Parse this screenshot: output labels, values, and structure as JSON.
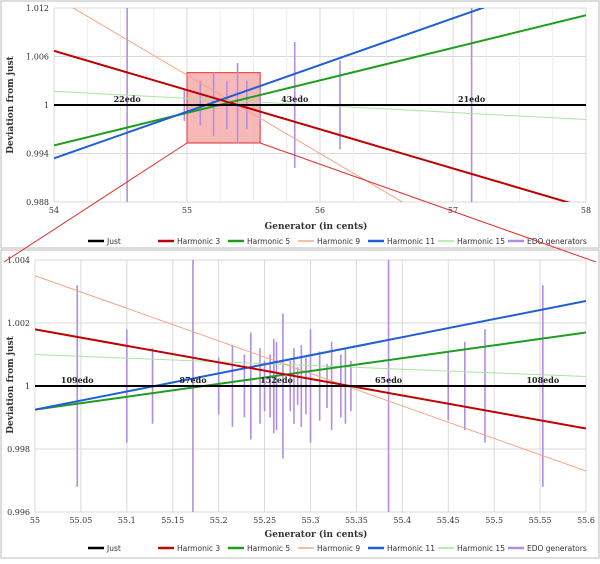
{
  "colors": {
    "just": "#000000",
    "harmonic3": "#c00000",
    "harmonic5": "#1e9e1e",
    "harmonic9": "#f4a582",
    "harmonic11": "#1f5fd6",
    "harmonic15": "#a8e6a0",
    "edo": "#b18ee0",
    "zoom_fill": "#f4a0a0",
    "zoom_stroke": "#e03030",
    "grid": "#d9d9d9",
    "border": "#bbbbbb"
  },
  "legend": {
    "items": [
      {
        "label": "Just",
        "key": "just"
      },
      {
        "label": "Harmonic 3",
        "key": "harmonic3"
      },
      {
        "label": "Harmonic 5",
        "key": "harmonic5"
      },
      {
        "label": "Harmonic 9",
        "key": "harmonic9"
      },
      {
        "label": "Harmonic 11",
        "key": "harmonic11"
      },
      {
        "label": "Harmonic 15",
        "key": "harmonic15"
      },
      {
        "label": "EDO generators",
        "key": "edo"
      }
    ]
  },
  "chart_data": [
    {
      "type": "line",
      "xlabel": "Generator (in cents)",
      "ylabel": "Deviation from just",
      "xlim": [
        54,
        58
      ],
      "ylim": [
        0.988,
        1.012
      ],
      "xticks": [
        54,
        55,
        56,
        57,
        58
      ],
      "yticks": [
        0.988,
        0.994,
        1,
        1.006,
        1.012
      ],
      "ytick_labels": [
        "0.988",
        "0.994",
        "1",
        "1.006",
        "1.012"
      ],
      "grid": true,
      "legend_position": "bottom",
      "series": [
        {
          "name": "Just",
          "key": "just",
          "x": [
            54,
            58
          ],
          "y": [
            1,
            1
          ]
        },
        {
          "name": "Harmonic 3",
          "key": "harmonic3",
          "x": [
            54,
            58
          ],
          "y": [
            1.0067,
            0.9873
          ]
        },
        {
          "name": "Harmonic 5",
          "key": "harmonic5",
          "x": [
            54,
            58
          ],
          "y": [
            0.995,
            1.0111
          ]
        },
        {
          "name": "Harmonic 9",
          "key": "harmonic9",
          "x": [
            54,
            58
          ],
          "y": [
            1.0134,
            0.9746
          ]
        },
        {
          "name": "Harmonic 11",
          "key": "harmonic11",
          "x": [
            54,
            58
          ],
          "y": [
            0.9934,
            1.0165
          ]
        },
        {
          "name": "Harmonic 15",
          "key": "harmonic15",
          "x": [
            54,
            58
          ],
          "y": [
            1.0017,
            0.9982
          ]
        }
      ],
      "edo_generators": [
        {
          "x": 54.55,
          "low": 0.988,
          "high": 1.012,
          "label": "22edo"
        },
        {
          "x": 54.98,
          "low": 0.998,
          "high": 1.002
        },
        {
          "x": 55.1,
          "low": 0.9975,
          "high": 1.003
        },
        {
          "x": 55.2,
          "low": 0.9962,
          "high": 1.004
        },
        {
          "x": 55.3,
          "low": 0.997,
          "high": 1.003
        },
        {
          "x": 55.38,
          "low": 0.9952,
          "high": 1.0052
        },
        {
          "x": 55.45,
          "low": 0.997,
          "high": 1.003
        },
        {
          "x": 55.55,
          "low": 0.998,
          "high": 1.002
        },
        {
          "x": 55.81,
          "low": 0.9922,
          "high": 1.0078,
          "label": "43edo"
        },
        {
          "x": 56.15,
          "low": 0.9945,
          "high": 1.0055
        },
        {
          "x": 57.14,
          "low": 0.988,
          "high": 1.012,
          "label": "21edo"
        }
      ],
      "zoom_box": {
        "x": [
          55,
          55.55
        ],
        "y": [
          0.9953,
          1.004
        ]
      }
    },
    {
      "type": "line",
      "xlabel": "Generator (in cents)",
      "ylabel": "Deviation from just",
      "xlim": [
        55,
        55.6
      ],
      "ylim": [
        0.996,
        1.004
      ],
      "xticks": [
        55,
        55.05,
        55.1,
        55.15,
        55.2,
        55.25,
        55.3,
        55.35,
        55.4,
        55.45,
        55.5,
        55.55,
        55.6
      ],
      "yticks": [
        0.996,
        0.998,
        1,
        1.002,
        1.004
      ],
      "ytick_labels": [
        "0.996",
        "0.998",
        "1",
        "1.002",
        "1.004"
      ],
      "grid": true,
      "legend_position": "bottom",
      "series": [
        {
          "name": "Just",
          "key": "just",
          "x": [
            55,
            55.6
          ],
          "y": [
            1,
            1
          ]
        },
        {
          "name": "Harmonic 3",
          "key": "harmonic3",
          "x": [
            55,
            55.6
          ],
          "y": [
            1.0018,
            0.99865
          ]
        },
        {
          "name": "Harmonic 5",
          "key": "harmonic5",
          "x": [
            55,
            55.6
          ],
          "y": [
            0.99925,
            1.0017
          ]
        },
        {
          "name": "Harmonic 9",
          "key": "harmonic9",
          "x": [
            55,
            55.6
          ],
          "y": [
            1.0035,
            0.9973
          ]
        },
        {
          "name": "Harmonic 11",
          "key": "harmonic11",
          "x": [
            55,
            55.6
          ],
          "y": [
            0.99925,
            1.0027
          ]
        },
        {
          "name": "Harmonic 15",
          "key": "harmonic15",
          "x": [
            55,
            55.6
          ],
          "y": [
            1.001,
            1.0003
          ]
        }
      ],
      "edo_generators": [
        {
          "x": 55.046,
          "low": 0.9968,
          "high": 1.0032,
          "label": "109edo"
        },
        {
          "x": 55.1,
          "low": 0.9982,
          "high": 1.0018
        },
        {
          "x": 55.128,
          "low": 0.9988,
          "high": 1.0012
        },
        {
          "x": 55.172,
          "low": 0.996,
          "high": 1.004,
          "label": "87edo"
        },
        {
          "x": 55.2,
          "low": 0.9991,
          "high": 1.0009
        },
        {
          "x": 55.215,
          "low": 0.9987,
          "high": 1.0013
        },
        {
          "x": 55.228,
          "low": 0.999,
          "high": 1.001
        },
        {
          "x": 55.235,
          "low": 0.9983,
          "high": 1.0017
        },
        {
          "x": 55.245,
          "low": 0.9988,
          "high": 1.0012
        },
        {
          "x": 55.25,
          "low": 0.9992,
          "high": 1.0008
        },
        {
          "x": 55.256,
          "low": 0.999,
          "high": 1.001
        },
        {
          "x": 55.26,
          "low": 0.9985,
          "high": 1.0015
        },
        {
          "x": 55.263,
          "low": 0.9986,
          "high": 1.0014,
          "label": "152edo"
        },
        {
          "x": 55.27,
          "low": 0.9977,
          "high": 1.0023
        },
        {
          "x": 55.278,
          "low": 0.9992,
          "high": 1.0008
        },
        {
          "x": 55.282,
          "low": 0.9988,
          "high": 1.0012
        },
        {
          "x": 55.286,
          "low": 0.9994,
          "high": 1.0006
        },
        {
          "x": 55.29,
          "low": 0.9987,
          "high": 1.0013
        },
        {
          "x": 55.295,
          "low": 0.9991,
          "high": 1.0009
        },
        {
          "x": 55.3,
          "low": 0.9982,
          "high": 1.0018
        },
        {
          "x": 55.31,
          "low": 0.9989,
          "high": 1.0011
        },
        {
          "x": 55.318,
          "low": 0.9993,
          "high": 1.0007
        },
        {
          "x": 55.323,
          "low": 0.9986,
          "high": 1.0014
        },
        {
          "x": 55.333,
          "low": 0.999,
          "high": 1.001
        },
        {
          "x": 55.338,
          "low": 0.9988,
          "high": 1.0012
        },
        {
          "x": 55.344,
          "low": 0.9992,
          "high": 1.0008
        },
        {
          "x": 55.385,
          "low": 0.996,
          "high": 1.004,
          "label": "65edo"
        },
        {
          "x": 55.45,
          "low": 0.9989,
          "high": 1.0011
        },
        {
          "x": 55.468,
          "low": 0.9986,
          "high": 1.0014
        },
        {
          "x": 55.49,
          "low": 0.9982,
          "high": 1.0018
        },
        {
          "x": 55.553,
          "low": 0.9968,
          "high": 1.0032,
          "label": "108edo"
        }
      ]
    }
  ]
}
